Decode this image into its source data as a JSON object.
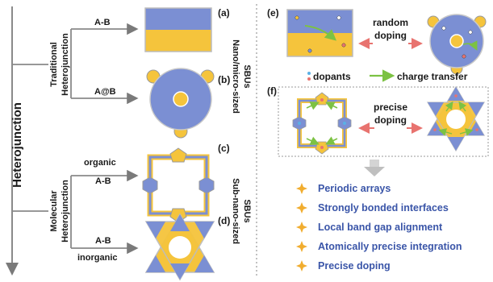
{
  "axis_label": "Heterojunction",
  "traditional": {
    "label_line1": "Traditional",
    "label_line2": "Heterojunction",
    "branch_ab": "A-B",
    "branch_aatb": "A@B",
    "panel_a": "(a)",
    "panel_b": "(b)"
  },
  "molecular": {
    "label_line1": "Molecular",
    "label_line2": "Heterojunction",
    "organic": "organic",
    "inorganic": "inorganic",
    "branch_ab_organic": "A-B",
    "branch_ab_inorganic": "A-B",
    "panel_c": "(c)",
    "panel_d": "(d)"
  },
  "scale_labels": {
    "nano_line1": "Nano/micro-sized",
    "nano_line2": "SBUs",
    "sub_line1": "Sub-nano-sized",
    "sub_line2": "SBUs"
  },
  "right": {
    "panel_e": "(e)",
    "panel_f": "(f)",
    "random_line1": "random",
    "random_line2": "doping",
    "precise_line1": "precise",
    "precise_line2": "doping",
    "legend_dopants": "dopants",
    "legend_charge": "charge transfer",
    "bullets": [
      "Periodic arrays",
      "Strongly bonded interfaces",
      "Local band gap alignment",
      "Atomically precise integration",
      "Precise doping"
    ]
  },
  "colors": {
    "blue": "#7b8fd3",
    "blue_dark": "#6f7fc6",
    "yellow": "#f5c43c",
    "outline": "#9a9a9a",
    "text_blue": "#3a55a8",
    "green": "#7cc243",
    "red": "#e8736f",
    "star": "#f1ad2f"
  }
}
